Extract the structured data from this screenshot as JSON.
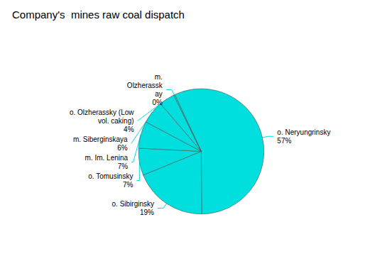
{
  "chart_data": {
    "type": "pie",
    "title": "Company's  mines raw coal dispatch",
    "categories": [
      "o. Neryungrinsky",
      "o. Sibirginsky",
      "o. Tomusinsky",
      "m. Im. Lenina",
      "m. Siberginskaya",
      "o. Olzherassky (Low\nvol. caking)",
      "m.\nOlzherassk\nay"
    ],
    "values": [
      57,
      19,
      7,
      7,
      6,
      4,
      0.3
    ],
    "value_labels": [
      "57%",
      "19%",
      "7%",
      "7%",
      "6%",
      "4%",
      "0%"
    ],
    "data_labels": true,
    "color": "#00DEDE"
  }
}
